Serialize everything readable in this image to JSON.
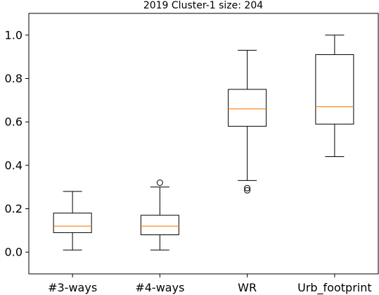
{
  "chart_data": {
    "type": "box",
    "title": "2019 Cluster-1 size: 204",
    "xlabel": "",
    "ylabel": "",
    "ylim": [
      -0.1,
      1.1
    ],
    "yticks": [
      0.0,
      0.2,
      0.4,
      0.6,
      0.8,
      1.0
    ],
    "ytick_labels": [
      "0.0",
      "0.2",
      "0.4",
      "0.6",
      "0.8",
      "1.0"
    ],
    "grid": false,
    "categories": [
      "#3-ways",
      "#4-ways",
      "WR",
      "Urb_footprint"
    ],
    "boxes": [
      {
        "whisker_low": 0.01,
        "q1": 0.09,
        "median": 0.12,
        "q3": 0.18,
        "whisker_high": 0.28,
        "outliers": []
      },
      {
        "whisker_low": 0.01,
        "q1": 0.08,
        "median": 0.12,
        "q3": 0.17,
        "whisker_high": 0.3,
        "outliers": [
          0.32
        ]
      },
      {
        "whisker_low": 0.33,
        "q1": 0.58,
        "median": 0.66,
        "q3": 0.75,
        "whisker_high": 0.93,
        "outliers": [
          0.295,
          0.285
        ]
      },
      {
        "whisker_low": 0.44,
        "q1": 0.59,
        "median": 0.67,
        "q3": 0.91,
        "whisker_high": 1.0,
        "outliers": []
      }
    ],
    "colors": {
      "box": "#000000",
      "median": "#ff7f0e",
      "axes": "#000000"
    }
  }
}
